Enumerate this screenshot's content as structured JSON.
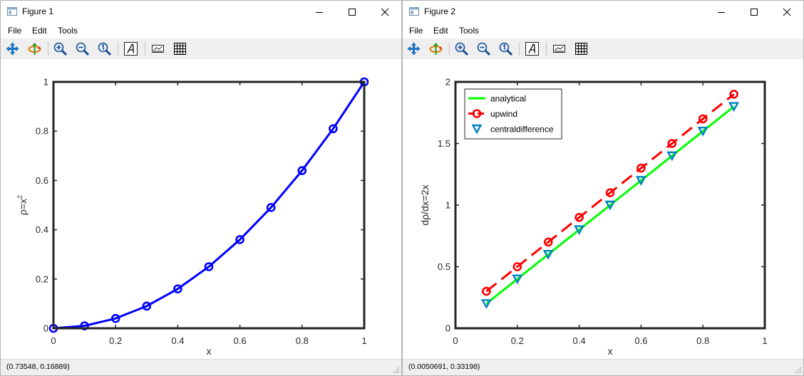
{
  "windows": [
    {
      "title": "Figure 1",
      "menus": [
        "File",
        "Edit",
        "Tools"
      ],
      "toolbar": [
        "pan-icon",
        "rotate-icon",
        "zoom-in-icon",
        "zoom-out-icon",
        "zoom-reset-icon",
        "text-icon",
        "legend-icon",
        "grid-icon"
      ],
      "status": "(0.73548, 0.16889)"
    },
    {
      "title": "Figure 2",
      "menus": [
        "File",
        "Edit",
        "Tools"
      ],
      "toolbar": [
        "pan-icon",
        "rotate-icon",
        "zoom-in-icon",
        "zoom-out-icon",
        "zoom-reset-icon",
        "text-icon",
        "legend-icon",
        "grid-icon"
      ],
      "status": "(0.0050691, 0.33198)"
    }
  ],
  "chart_data": [
    {
      "type": "line",
      "title": "",
      "xlabel": "x",
      "ylabel": "ρ=x",
      "ylabel_superscript": "2",
      "xlim": [
        0,
        1
      ],
      "ylim": [
        0,
        1
      ],
      "xticks": [
        "0",
        "0.2",
        "0.4",
        "0.6",
        "0.8",
        "1"
      ],
      "yticks": [
        "0",
        "0.2",
        "0.4",
        "0.6",
        "0.8",
        "1"
      ],
      "grid": false,
      "series": [
        {
          "color": "#0000ff",
          "marker": "circle",
          "line": "solid",
          "x": [
            0,
            0.1,
            0.2,
            0.3,
            0.4,
            0.5,
            0.6,
            0.7,
            0.8,
            0.9,
            1.0
          ],
          "y": [
            0,
            0.01,
            0.04,
            0.09,
            0.16,
            0.25,
            0.36,
            0.49,
            0.64,
            0.81,
            1.0
          ]
        }
      ]
    },
    {
      "type": "line",
      "title": "",
      "xlabel": "x",
      "ylabel": "dρ/dx=2x",
      "xlim": [
        0,
        1
      ],
      "ylim": [
        0,
        2
      ],
      "xticks": [
        "0",
        "0.2",
        "0.4",
        "0.6",
        "0.8",
        "1"
      ],
      "yticks": [
        "0",
        "0.5",
        "1",
        "1.5",
        "2"
      ],
      "grid": false,
      "legend_position": "top-left",
      "series": [
        {
          "name": "analytical",
          "color": "#00ff00",
          "marker": "none",
          "line": "solid",
          "x": [
            0.1,
            0.2,
            0.3,
            0.4,
            0.5,
            0.6,
            0.7,
            0.8,
            0.9
          ],
          "y": [
            0.2,
            0.4,
            0.6,
            0.8,
            1.0,
            1.2,
            1.4,
            1.6,
            1.8
          ]
        },
        {
          "name": "upwind",
          "color": "#ff0000",
          "marker": "circle",
          "line": "dashed",
          "x": [
            0.1,
            0.2,
            0.3,
            0.4,
            0.5,
            0.6,
            0.7,
            0.8,
            0.9
          ],
          "y": [
            0.3,
            0.5,
            0.7,
            0.9,
            1.1,
            1.3,
            1.5,
            1.7,
            1.9
          ]
        },
        {
          "name": "centraldifference",
          "color": "#0080c0",
          "marker": "triangle-down",
          "line": "none",
          "x": [
            0.1,
            0.2,
            0.3,
            0.4,
            0.5,
            0.6,
            0.7,
            0.8,
            0.9
          ],
          "y": [
            0.2,
            0.4,
            0.6,
            0.8,
            1.0,
            1.2,
            1.4,
            1.6,
            1.8
          ]
        }
      ]
    }
  ]
}
